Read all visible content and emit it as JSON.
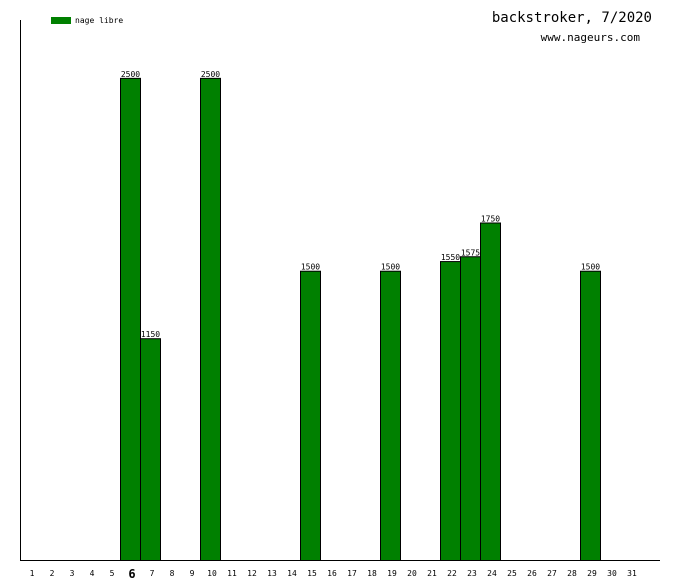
{
  "header": {
    "title": "backstroker, 7/2020",
    "subtitle": "www.nageurs.com"
  },
  "legend": {
    "label": "nage libre",
    "color": "#008000"
  },
  "chart_data": {
    "type": "bar",
    "title": "backstroker, 7/2020",
    "xlabel": "",
    "ylabel": "",
    "highlighted_category": "6",
    "categories": [
      "1",
      "2",
      "3",
      "4",
      "5",
      "6",
      "7",
      "8",
      "9",
      "10",
      "11",
      "12",
      "13",
      "14",
      "15",
      "16",
      "17",
      "18",
      "19",
      "20",
      "21",
      "22",
      "23",
      "24",
      "25",
      "26",
      "27",
      "28",
      "29",
      "30",
      "31"
    ],
    "series": [
      {
        "name": "nage libre",
        "color": "#008000",
        "values": [
          null,
          null,
          null,
          null,
          null,
          2500,
          1150,
          null,
          null,
          2500,
          null,
          null,
          null,
          null,
          1500,
          null,
          null,
          null,
          1500,
          null,
          null,
          1550,
          1575,
          1750,
          null,
          null,
          null,
          null,
          1500,
          null,
          null
        ]
      }
    ],
    "ylim": [
      0,
      2800
    ],
    "grid": false,
    "legend_position": "top-left"
  }
}
